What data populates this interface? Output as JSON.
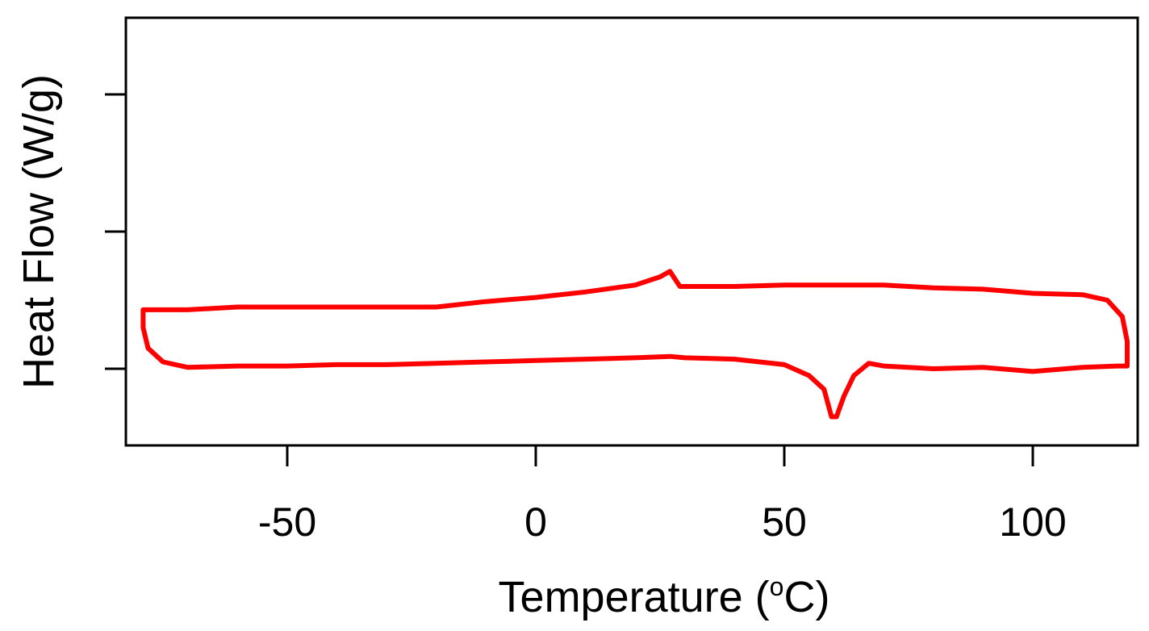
{
  "chart_data": {
    "type": "line",
    "title": "",
    "xlabel": "Temperature (ºC)",
    "xlabel_parts": {
      "before": "Temperature (",
      "superscript": "o",
      "after": "C)"
    },
    "ylabel": "Heat Flow (W/g)",
    "xlim": [
      -82,
      119
    ],
    "ylim": [
      -0.55,
      2.55
    ],
    "x_ticks": [
      -50,
      0,
      50,
      100
    ],
    "x_tick_labels": [
      "-50",
      "0",
      "50",
      "100"
    ],
    "y_ticks": [
      0,
      1,
      2
    ],
    "y_tick_labels": [
      "",
      "",
      ""
    ],
    "grid": false,
    "legend": "none",
    "series_color": "#ff0000",
    "series": [
      {
        "values": [
          [
            -79,
            0.43
          ],
          [
            -70,
            0.43
          ],
          [
            -60,
            0.45
          ],
          [
            -40,
            0.45
          ],
          [
            -20,
            0.45
          ],
          [
            -10,
            0.49
          ],
          [
            0,
            0.52
          ],
          [
            10,
            0.56
          ],
          [
            20,
            0.61
          ],
          [
            25,
            0.67
          ],
          [
            27,
            0.71
          ],
          [
            29,
            0.6
          ],
          [
            40,
            0.6
          ],
          [
            50,
            0.61
          ],
          [
            60,
            0.61
          ],
          [
            70,
            0.61
          ],
          [
            80,
            0.59
          ],
          [
            90,
            0.58
          ],
          [
            100,
            0.55
          ],
          [
            110,
            0.54
          ],
          [
            115,
            0.5
          ],
          [
            118,
            0.38
          ],
          [
            119,
            0.2
          ],
          [
            119,
            0.02
          ],
          [
            117,
            0.02
          ],
          [
            110,
            0.01
          ],
          [
            100,
            -0.02
          ],
          [
            90,
            0.01
          ],
          [
            80,
            0.0
          ],
          [
            70,
            0.02
          ],
          [
            67,
            0.04
          ],
          [
            64,
            -0.05
          ],
          [
            62,
            -0.2
          ],
          [
            60.5,
            -0.35
          ],
          [
            59.5,
            -0.35
          ],
          [
            58,
            -0.15
          ],
          [
            55,
            -0.05
          ],
          [
            50,
            0.03
          ],
          [
            40,
            0.07
          ],
          [
            30,
            0.08
          ],
          [
            27,
            0.09
          ],
          [
            20,
            0.08
          ],
          [
            10,
            0.07
          ],
          [
            0,
            0.06
          ],
          [
            -10,
            0.05
          ],
          [
            -20,
            0.04
          ],
          [
            -30,
            0.03
          ],
          [
            -40,
            0.03
          ],
          [
            -50,
            0.02
          ],
          [
            -60,
            0.02
          ],
          [
            -70,
            0.01
          ],
          [
            -75,
            0.05
          ],
          [
            -78,
            0.15
          ],
          [
            -79,
            0.3
          ],
          [
            -79,
            0.43
          ]
        ]
      }
    ]
  }
}
